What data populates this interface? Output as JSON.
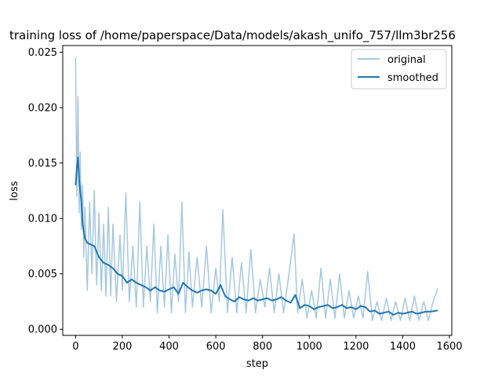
{
  "chart_data": {
    "type": "line",
    "title": "training loss of /home/paperspace/Data/models/akash_unifo_757/llm3br256",
    "xlabel": "step",
    "ylabel": "loss",
    "xlim": [
      -55,
      1610
    ],
    "ylim": [
      -0.00055,
      0.0256
    ],
    "xticks": [
      0,
      200,
      400,
      600,
      800,
      1000,
      1200,
      1400,
      1600
    ],
    "xtick_labels": [
      "0",
      "200",
      "400",
      "600",
      "800",
      "1000",
      "1200",
      "1400",
      "1600"
    ],
    "yticks": [
      0.0,
      0.005,
      0.01,
      0.015,
      0.02,
      0.025
    ],
    "ytick_labels": [
      "0.000",
      "0.005",
      "0.010",
      "0.015",
      "0.020",
      "0.025"
    ],
    "grid": false,
    "legend_position": "top-right",
    "series": [
      {
        "name": "original",
        "color": "#a6c8e0",
        "x": [
          0,
          5,
          10,
          15,
          20,
          25,
          30,
          35,
          40,
          50,
          60,
          70,
          80,
          90,
          100,
          110,
          120,
          130,
          140,
          150,
          160,
          175,
          190,
          200,
          215,
          230,
          245,
          260,
          275,
          290,
          305,
          320,
          335,
          350,
          365,
          380,
          395,
          410,
          425,
          440,
          455,
          470,
          485,
          500,
          520,
          540,
          560,
          580,
          600,
          615,
          630,
          650,
          670,
          690,
          710,
          730,
          750,
          770,
          790,
          810,
          830,
          850,
          870,
          890,
          910,
          935,
          950,
          970,
          990,
          1010,
          1030,
          1050,
          1070,
          1090,
          1110,
          1130,
          1150,
          1170,
          1190,
          1210,
          1230,
          1250,
          1270,
          1290,
          1310,
          1330,
          1350,
          1370,
          1390,
          1410,
          1430,
          1450,
          1470,
          1490,
          1510,
          1530,
          1550
        ],
        "y": [
          0.0245,
          0.012,
          0.021,
          0.0105,
          0.016,
          0.009,
          0.013,
          0.0065,
          0.011,
          0.0035,
          0.0115,
          0.005,
          0.0125,
          0.004,
          0.0105,
          0.0035,
          0.0095,
          0.003,
          0.011,
          0.003,
          0.0095,
          0.0025,
          0.0085,
          0.0035,
          0.0123,
          0.0025,
          0.0075,
          0.002,
          0.0115,
          0.002,
          0.0075,
          0.0025,
          0.0095,
          0.0015,
          0.0075,
          0.002,
          0.0085,
          0.0015,
          0.0068,
          0.0025,
          0.0115,
          0.0015,
          0.007,
          0.002,
          0.0065,
          0.002,
          0.0075,
          0.0015,
          0.0055,
          0.0025,
          0.0108,
          0.0015,
          0.0065,
          0.0015,
          0.006,
          0.0015,
          0.0072,
          0.0015,
          0.0045,
          0.002,
          0.0055,
          0.0015,
          0.005,
          0.0015,
          0.0045,
          0.0086,
          0.0015,
          0.0045,
          0.001,
          0.0035,
          0.001,
          0.0055,
          0.001,
          0.0045,
          0.001,
          0.005,
          0.001,
          0.0035,
          0.001,
          0.003,
          0.001,
          0.0052,
          0.0008,
          0.0025,
          0.0008,
          0.0028,
          0.0008,
          0.0025,
          0.0008,
          0.0028,
          0.0008,
          0.003,
          0.0008,
          0.0025,
          0.0008,
          0.0025,
          0.0037
        ]
      },
      {
        "name": "smoothed",
        "color": "#1f77b4",
        "x": [
          0,
          5,
          10,
          15,
          20,
          25,
          30,
          40,
          50,
          60,
          80,
          100,
          120,
          140,
          160,
          180,
          200,
          220,
          240,
          260,
          280,
          300,
          320,
          340,
          360,
          380,
          400,
          420,
          440,
          460,
          480,
          500,
          520,
          540,
          560,
          580,
          600,
          620,
          640,
          660,
          680,
          700,
          720,
          740,
          760,
          780,
          800,
          820,
          840,
          860,
          880,
          900,
          920,
          940,
          960,
          980,
          1000,
          1020,
          1040,
          1060,
          1080,
          1100,
          1120,
          1140,
          1160,
          1180,
          1200,
          1220,
          1240,
          1260,
          1280,
          1300,
          1320,
          1340,
          1360,
          1380,
          1400,
          1420,
          1440,
          1460,
          1480,
          1500,
          1520,
          1550
        ],
        "y": [
          0.013,
          0.0145,
          0.0155,
          0.0135,
          0.0125,
          0.0115,
          0.0095,
          0.0082,
          0.0078,
          0.0077,
          0.0075,
          0.0065,
          0.006,
          0.0058,
          0.0055,
          0.005,
          0.0048,
          0.0042,
          0.0045,
          0.0042,
          0.004,
          0.0038,
          0.0035,
          0.0038,
          0.0035,
          0.0034,
          0.0036,
          0.0038,
          0.0032,
          0.0042,
          0.0038,
          0.0035,
          0.0033,
          0.0035,
          0.0036,
          0.0035,
          0.0032,
          0.004,
          0.003,
          0.0027,
          0.0025,
          0.0029,
          0.0027,
          0.0026,
          0.0028,
          0.0026,
          0.0027,
          0.0028,
          0.0026,
          0.0027,
          0.0029,
          0.0026,
          0.0024,
          0.0031,
          0.0019,
          0.0022,
          0.0021,
          0.0018,
          0.002,
          0.0021,
          0.0022,
          0.0019,
          0.002,
          0.0022,
          0.0019,
          0.002,
          0.0018,
          0.0021,
          0.002,
          0.0016,
          0.0017,
          0.0014,
          0.0015,
          0.0016,
          0.0013,
          0.0015,
          0.0014,
          0.0015,
          0.0016,
          0.0014,
          0.0015,
          0.0016,
          0.0016,
          0.0017
        ]
      }
    ]
  }
}
